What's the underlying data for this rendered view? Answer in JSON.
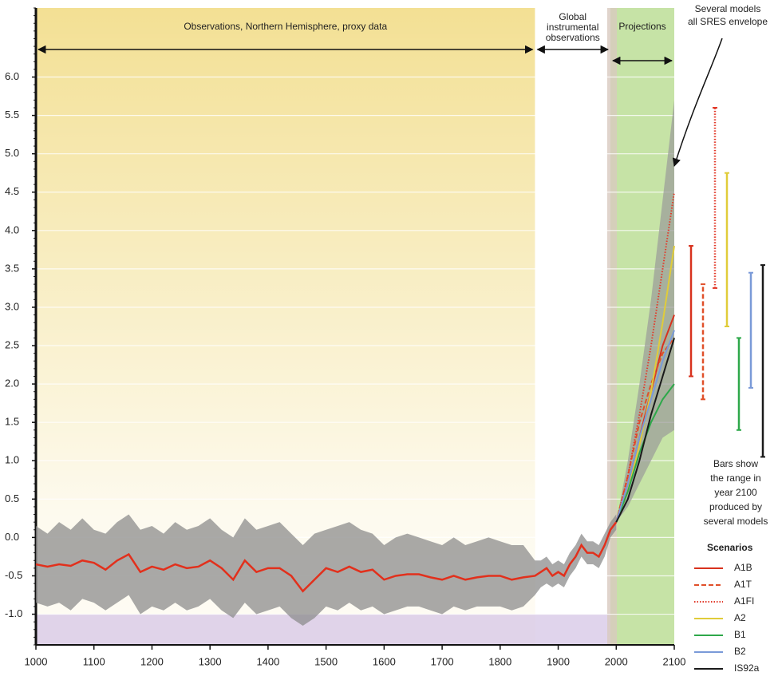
{
  "chart_data": {
    "type": "line",
    "xlim": [
      1000,
      2100
    ],
    "xticks": [
      1000,
      1100,
      1200,
      1300,
      1400,
      1500,
      1600,
      1700,
      1800,
      1900,
      2000,
      2100
    ],
    "ylim": [
      -1.4,
      6.9
    ],
    "yticks": [
      {
        "value": -1.0,
        "label": "-1.0"
      },
      -0.5,
      {
        "value": 0.0,
        "label": "0.0"
      },
      0.5,
      {
        "value": 1.0,
        "label": "1.0"
      },
      1.5,
      {
        "value": 2.0,
        "label": "2.0"
      },
      2.5,
      {
        "value": 3.0,
        "label": "3.0"
      },
      3.5,
      {
        "value": 4.0,
        "label": "4.0"
      },
      4.5,
      {
        "value": 5.0,
        "label": "5.0"
      },
      5.5,
      {
        "value": 6.0,
        "label": "6.0"
      }
    ],
    "grid": true,
    "legend": "lower right",
    "legend_title": "Scenarios",
    "regions": [
      {
        "label": [
          "Observations, Northern Hemisphere, proxy data"
        ],
        "from": 1000,
        "to": 1860,
        "color": "#f3e094"
      },
      {
        "label": [
          "Global",
          "instrumental",
          "observations"
        ],
        "from": 1860,
        "to": 1990,
        "color": "#ffffff"
      },
      {
        "label": [
          "Projections"
        ],
        "from": 1990,
        "to": 2100,
        "color": "#c6e3a6"
      }
    ],
    "envelope_note": [
      "Several models",
      "all SRES envelope"
    ],
    "bars_note": [
      "Bars show",
      "the range in",
      "year 2100",
      "produced by",
      "several models"
    ],
    "observations": {
      "color": "#e2301c",
      "x": [
        1000,
        1020,
        1040,
        1060,
        1080,
        1100,
        1120,
        1140,
        1160,
        1180,
        1200,
        1220,
        1240,
        1260,
        1280,
        1300,
        1320,
        1340,
        1360,
        1380,
        1400,
        1420,
        1440,
        1460,
        1480,
        1500,
        1520,
        1540,
        1560,
        1580,
        1600,
        1620,
        1640,
        1660,
        1680,
        1700,
        1720,
        1740,
        1760,
        1780,
        1800,
        1820,
        1840,
        1860,
        1870,
        1880,
        1890,
        1900,
        1910,
        1920,
        1930,
        1940,
        1950,
        1960,
        1970,
        1980,
        1990,
        2000
      ],
      "values": [
        -0.35,
        -0.38,
        -0.35,
        -0.37,
        -0.3,
        -0.33,
        -0.42,
        -0.3,
        -0.22,
        -0.45,
        -0.38,
        -0.42,
        -0.35,
        -0.4,
        -0.38,
        -0.3,
        -0.4,
        -0.55,
        -0.3,
        -0.45,
        -0.4,
        -0.4,
        -0.5,
        -0.7,
        -0.55,
        -0.4,
        -0.45,
        -0.38,
        -0.45,
        -0.42,
        -0.55,
        -0.5,
        -0.48,
        -0.48,
        -0.52,
        -0.55,
        -0.5,
        -0.55,
        -0.52,
        -0.5,
        -0.5,
        -0.55,
        -0.52,
        -0.5,
        -0.45,
        -0.4,
        -0.5,
        -0.45,
        -0.5,
        -0.35,
        -0.25,
        -0.1,
        -0.2,
        -0.2,
        -0.25,
        -0.1,
        0.1,
        0.2
      ],
      "upper": [
        0.15,
        0.05,
        0.2,
        0.1,
        0.25,
        0.1,
        0.05,
        0.2,
        0.3,
        0.1,
        0.15,
        0.05,
        0.2,
        0.1,
        0.15,
        0.25,
        0.1,
        0.0,
        0.25,
        0.1,
        0.15,
        0.2,
        0.05,
        -0.1,
        0.05,
        0.1,
        0.15,
        0.2,
        0.1,
        0.05,
        -0.1,
        0.0,
        0.05,
        0.0,
        -0.05,
        -0.1,
        0.0,
        -0.1,
        -0.05,
        0.0,
        -0.05,
        -0.1,
        -0.1,
        -0.3,
        -0.3,
        -0.25,
        -0.35,
        -0.3,
        -0.35,
        -0.2,
        -0.1,
        0.05,
        -0.05,
        -0.05,
        -0.1,
        0.05,
        0.2,
        0.3
      ],
      "lower": [
        -0.85,
        -0.9,
        -0.85,
        -0.95,
        -0.8,
        -0.85,
        -0.95,
        -0.85,
        -0.75,
        -1.0,
        -0.9,
        -0.95,
        -0.85,
        -0.95,
        -0.9,
        -0.8,
        -0.95,
        -1.05,
        -0.85,
        -1.0,
        -0.95,
        -0.9,
        -1.05,
        -1.15,
        -1.05,
        -0.9,
        -0.95,
        -0.85,
        -0.95,
        -0.9,
        -1.0,
        -0.95,
        -0.9,
        -0.9,
        -0.95,
        -1.0,
        -0.9,
        -0.95,
        -0.9,
        -0.9,
        -0.9,
        -0.95,
        -0.9,
        -0.75,
        -0.65,
        -0.6,
        -0.65,
        -0.6,
        -0.65,
        -0.5,
        -0.4,
        -0.25,
        -0.35,
        -0.35,
        -0.4,
        -0.25,
        0.0,
        0.1
      ]
    },
    "envelope": {
      "color": "#9a9a9a",
      "x": [
        2000,
        2020,
        2040,
        2060,
        2080,
        2100
      ],
      "upper": [
        0.2,
        1.0,
        2.0,
        3.1,
        4.4,
        5.7
      ],
      "lower": [
        0.2,
        0.4,
        0.7,
        1.0,
        1.3,
        1.4
      ]
    },
    "x": [
      2000,
      2020,
      2040,
      2060,
      2080,
      2100
    ],
    "series": [
      {
        "name": "A1B",
        "color": "#d8321e",
        "dash": "solid",
        "values": [
          0.2,
          0.7,
          1.3,
          1.9,
          2.5,
          2.9
        ],
        "range": [
          2.1,
          3.8
        ]
      },
      {
        "name": "A1T",
        "color": "#e0502a",
        "dash": "dashed",
        "values": [
          0.2,
          0.8,
          1.5,
          2.0,
          2.4,
          2.6
        ],
        "range": [
          1.8,
          3.3
        ]
      },
      {
        "name": "A1FI",
        "color": "#e23a2a",
        "dash": "dotted",
        "values": [
          0.2,
          0.8,
          1.6,
          2.5,
          3.5,
          4.5
        ],
        "range": [
          3.25,
          5.6
        ]
      },
      {
        "name": "A2",
        "color": "#e0cc3a",
        "dash": "solid",
        "values": [
          0.2,
          0.6,
          1.2,
          1.9,
          2.8,
          3.8
        ],
        "range": [
          2.75,
          4.75
        ]
      },
      {
        "name": "B1",
        "color": "#2ea84a",
        "dash": "solid",
        "values": [
          0.2,
          0.6,
          1.1,
          1.5,
          1.8,
          2.0
        ],
        "range": [
          1.4,
          2.6
        ]
      },
      {
        "name": "B2",
        "color": "#7a9ad8",
        "dash": "solid",
        "values": [
          0.2,
          0.7,
          1.3,
          1.8,
          2.3,
          2.7
        ],
        "range": [
          1.95,
          3.45
        ]
      },
      {
        "name": "IS92a",
        "color": "#1a1a1a",
        "dash": "solid",
        "values": [
          0.2,
          0.5,
          1.0,
          1.6,
          2.1,
          2.6
        ],
        "range": [
          1.05,
          3.55
        ]
      }
    ]
  }
}
